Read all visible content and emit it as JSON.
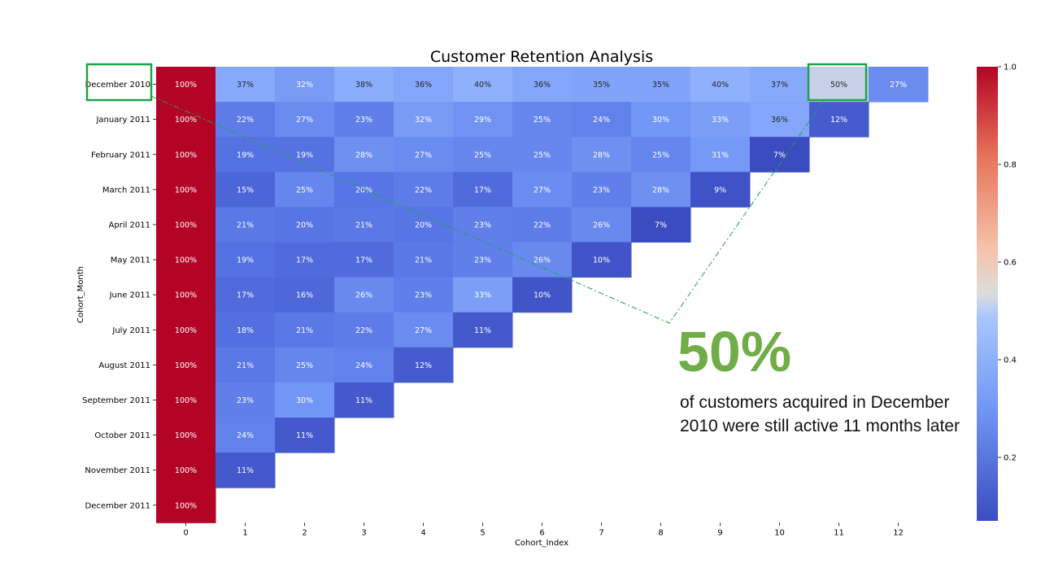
{
  "chart_data": {
    "type": "heatmap",
    "title": "Customer Retention Analysis",
    "xlabel": "Cohort_Index",
    "ylabel": "Cohort_Month",
    "x_categories": [
      "0",
      "1",
      "2",
      "3",
      "4",
      "5",
      "6",
      "7",
      "8",
      "9",
      "10",
      "11",
      "12"
    ],
    "y_categories": [
      "December 2010",
      "January 2011",
      "February 2011",
      "March 2011",
      "April 2011",
      "May 2011",
      "June 2011",
      "July 2011",
      "August 2011",
      "September 2011",
      "October 2011",
      "November 2011",
      "December 2011"
    ],
    "values": [
      [
        1.0,
        0.37,
        0.32,
        0.38,
        0.36,
        0.4,
        0.36,
        0.35,
        0.35,
        0.4,
        0.37,
        0.5,
        0.27
      ],
      [
        1.0,
        0.22,
        0.27,
        0.23,
        0.32,
        0.29,
        0.25,
        0.24,
        0.3,
        0.33,
        0.36,
        0.12
      ],
      [
        1.0,
        0.19,
        0.19,
        0.28,
        0.27,
        0.25,
        0.25,
        0.28,
        0.25,
        0.31,
        0.07
      ],
      [
        1.0,
        0.15,
        0.25,
        0.2,
        0.22,
        0.17,
        0.27,
        0.23,
        0.28,
        0.09
      ],
      [
        1.0,
        0.21,
        0.2,
        0.21,
        0.2,
        0.23,
        0.22,
        0.26,
        0.07
      ],
      [
        1.0,
        0.19,
        0.17,
        0.17,
        0.21,
        0.23,
        0.26,
        0.1
      ],
      [
        1.0,
        0.17,
        0.16,
        0.26,
        0.23,
        0.33,
        0.1
      ],
      [
        1.0,
        0.18,
        0.21,
        0.22,
        0.27,
        0.11
      ],
      [
        1.0,
        0.21,
        0.25,
        0.24,
        0.12
      ],
      [
        1.0,
        0.23,
        0.3,
        0.11
      ],
      [
        1.0,
        0.24,
        0.11
      ],
      [
        1.0,
        0.11
      ],
      [
        1.0
      ]
    ],
    "colormap": "coolwarm",
    "vmin": 0.07,
    "vmax": 1.0,
    "colorbar_ticks": [
      "0.2",
      "0.4",
      "0.6",
      "0.8",
      "1.0"
    ],
    "highlight_color": "#1fa34a",
    "highlighted_cell": {
      "row": "December 2010",
      "col": "11",
      "value": 0.5
    }
  },
  "callout": {
    "big_value": "50%",
    "text": "of customers acquired in December 2010 were still active 11 months later",
    "color": "#70ad47"
  }
}
